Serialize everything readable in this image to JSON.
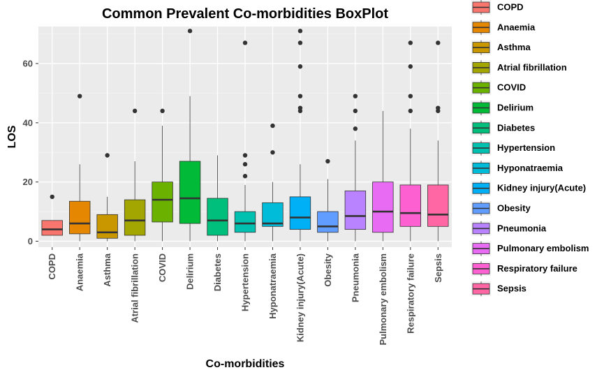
{
  "chart_data": {
    "type": "boxplot",
    "title": "Common Prevalent Co-morbidities BoxPlot",
    "xlabel": "Co-morbidities",
    "ylabel": "LOS",
    "ylim": [
      -2,
      72.5
    ],
    "yticks": [
      0,
      20,
      40,
      60
    ],
    "grid": true,
    "legend_position": "right",
    "categories": [
      "COPD",
      "Anaemia",
      "Asthma",
      "Atrial fibrillation",
      "COVID",
      "Delirium",
      "Diabetes",
      "Hypertension",
      "Hyponatraemia",
      "Kidney injury(Acute)",
      "Obesity",
      "Pneumonia",
      "Pulmonary embolism",
      "Respiratory failure",
      "Sepsis"
    ],
    "colors": [
      "#F8766D",
      "#E58700",
      "#C99800",
      "#A3A500",
      "#6BB100",
      "#00BA38",
      "#00BF7D",
      "#00C0AF",
      "#00BCD8",
      "#00B0F6",
      "#619CFF",
      "#B983FF",
      "#E76BF3",
      "#FD61D1",
      "#FF67A4"
    ],
    "boxes": [
      {
        "name": "COPD",
        "min": 2,
        "q1": 2,
        "median": 4,
        "q3": 7,
        "max": 7,
        "outliers": [
          15
        ]
      },
      {
        "name": "Anaemia",
        "min": 0,
        "q1": 2.5,
        "median": 6,
        "q3": 13.5,
        "max": 26,
        "outliers": [
          49
        ]
      },
      {
        "name": "Asthma",
        "min": 0,
        "q1": 1,
        "median": 3,
        "q3": 9,
        "max": 15,
        "outliers": [
          29
        ]
      },
      {
        "name": "Atrial fibrillation",
        "min": 0,
        "q1": 2,
        "median": 7,
        "q3": 14,
        "max": 27,
        "outliers": [
          44
        ]
      },
      {
        "name": "COVID",
        "min": 0,
        "q1": 6.5,
        "median": 14,
        "q3": 20,
        "max": 39,
        "outliers": [
          44
        ]
      },
      {
        "name": "Delirium",
        "min": 0,
        "q1": 6,
        "median": 14.5,
        "q3": 27,
        "max": 49,
        "outliers": [
          71
        ]
      },
      {
        "name": "Diabetes",
        "min": 0,
        "q1": 2,
        "median": 7,
        "q3": 14.5,
        "max": 29,
        "outliers": []
      },
      {
        "name": "Hypertension",
        "min": 0,
        "q1": 3,
        "median": 6,
        "q3": 10,
        "max": 19,
        "outliers": [
          22,
          26,
          29,
          67
        ]
      },
      {
        "name": "Hyponatraemia",
        "min": 0,
        "q1": 5,
        "median": 6,
        "q3": 13,
        "max": 20,
        "outliers": [
          30,
          39
        ]
      },
      {
        "name": "Kidney injury(Acute)",
        "min": 0,
        "q1": 4,
        "median": 8,
        "q3": 15,
        "max": 26,
        "outliers": [
          44,
          45,
          49,
          59,
          67,
          71
        ]
      },
      {
        "name": "Obesity",
        "min": 0,
        "q1": 3,
        "median": 5,
        "q3": 10,
        "max": 21,
        "outliers": [
          27
        ]
      },
      {
        "name": "Pneumonia",
        "min": 0,
        "q1": 4,
        "median": 8.5,
        "q3": 17,
        "max": 34,
        "outliers": [
          38,
          44,
          49
        ]
      },
      {
        "name": "Pulmonary embolism",
        "min": 0,
        "q1": 3,
        "median": 10,
        "q3": 20,
        "max": 44,
        "outliers": []
      },
      {
        "name": "Respiratory failure",
        "min": 0,
        "q1": 5,
        "median": 9.5,
        "q3": 19,
        "max": 38,
        "outliers": [
          44,
          49,
          59,
          67
        ]
      },
      {
        "name": "Sepsis",
        "min": 0,
        "q1": 5,
        "median": 9,
        "q3": 19,
        "max": 34,
        "outliers": [
          44,
          45,
          67
        ]
      }
    ]
  }
}
